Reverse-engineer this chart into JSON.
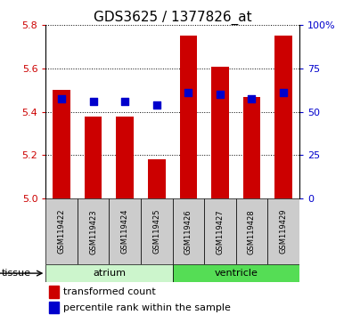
{
  "title": "GDS3625 / 1377826_at",
  "samples": [
    "GSM119422",
    "GSM119423",
    "GSM119424",
    "GSM119425",
    "GSM119426",
    "GSM119427",
    "GSM119428",
    "GSM119429"
  ],
  "red_values": [
    5.5,
    5.38,
    5.38,
    5.18,
    5.75,
    5.61,
    5.47,
    5.75
  ],
  "blue_values": [
    5.46,
    5.45,
    5.45,
    5.43,
    5.49,
    5.48,
    5.46,
    5.49
  ],
  "y_min": 5.0,
  "y_max": 5.8,
  "y_ticks": [
    5.0,
    5.2,
    5.4,
    5.6,
    5.8
  ],
  "y2_ticks": [
    0,
    25,
    50,
    75,
    100
  ],
  "y2_labels": [
    "0",
    "25",
    "50",
    "75",
    "100%"
  ],
  "tissues": [
    {
      "label": "atrium",
      "start": 0,
      "end": 3,
      "color": "#ccf5cc"
    },
    {
      "label": "ventricle",
      "start": 4,
      "end": 7,
      "color": "#55dd55"
    }
  ],
  "tissue_label": "tissue",
  "legend_red": "transformed count",
  "legend_blue": "percentile rank within the sample",
  "bar_color": "#cc0000",
  "dot_color": "#0000cc",
  "bar_width": 0.55,
  "dot_size": 40,
  "left_tick_color": "#cc0000",
  "right_tick_color": "#0000cc",
  "title_fontsize": 11,
  "tick_fontsize": 8,
  "legend_fontsize": 8,
  "sample_box_color": "#cccccc",
  "sample_label_fontsize": 6
}
